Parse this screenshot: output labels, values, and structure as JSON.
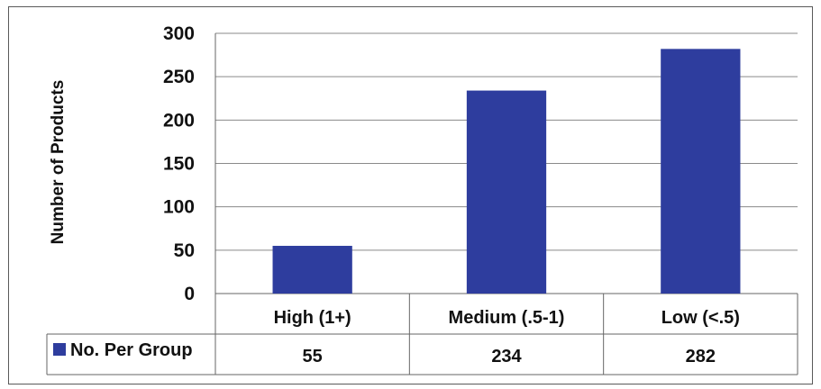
{
  "chart_data": {
    "type": "bar",
    "categories": [
      "High (1+)",
      "Medium (.5-1)",
      "Low (<.5)"
    ],
    "series": [
      {
        "name": "No. Per Group",
        "values": [
          55,
          234,
          282
        ],
        "color": "#2E3D9E"
      }
    ],
    "ylabel": "Number of Products",
    "xlabel": "",
    "ylim": [
      0,
      300
    ],
    "yticks": [
      0,
      50,
      100,
      150,
      200,
      250,
      300
    ],
    "grid": true,
    "legend": "data-table",
    "data_table": true
  }
}
